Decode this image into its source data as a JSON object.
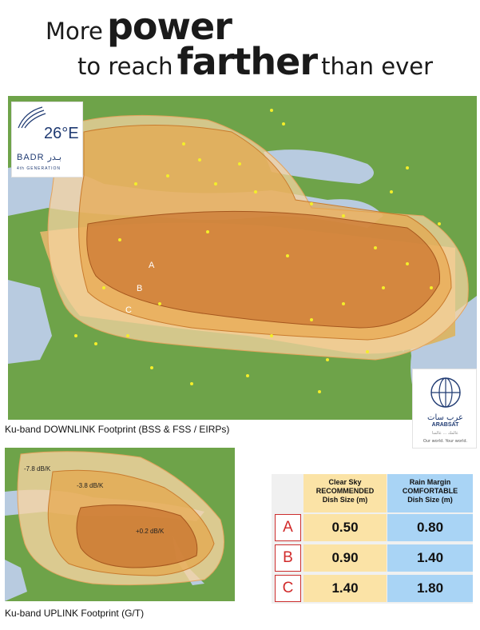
{
  "headline": {
    "line1_a": "More",
    "line1_b": "power",
    "line2_a": "to reach",
    "line2_b": "farther",
    "line2_c": "than ever"
  },
  "badr_logo": {
    "position": "26°E",
    "name": "BADR بـدر",
    "generation": "4th GENERATION"
  },
  "downlink_map": {
    "zones": [
      "A",
      "B",
      "C"
    ],
    "caption": "Ku-band DOWNLINK Footprint (BSS & FSS / EIRPs)"
  },
  "arabsat_logo": {
    "arabic": "عرب سات",
    "name": "ARABSAT",
    "subtitle": "عالمك ... عالمنا",
    "tagline": "Our world. Your world."
  },
  "uplink_map": {
    "contours": [
      "-7.8 dB/K",
      "-3.8 dB/K",
      "+0.2 dB/K"
    ],
    "caption": "Ku-band UPLINK Footprint (G/T)"
  },
  "dish_table": {
    "col1_header": [
      "Clear Sky",
      "RECOMMENDED",
      "Dish Size (m)"
    ],
    "col2_header": [
      "Rain Margin",
      "COMFORTABLE",
      "Dish Size (m)"
    ],
    "rows": [
      {
        "zone": "A",
        "clear_sky": "0.50",
        "rain_margin": "0.80"
      },
      {
        "zone": "B",
        "clear_sky": "0.90",
        "rain_margin": "1.40"
      },
      {
        "zone": "C",
        "clear_sky": "1.40",
        "rain_margin": "1.80"
      }
    ]
  },
  "colors": {
    "terrain_green": "#5f9a3b",
    "desert": "#d9b66a",
    "sea": "#b8cbe0",
    "beam_outer": "#f6d3a2",
    "beam_mid": "#e6a548",
    "beam_inner": "#c8702c",
    "accent_red": "#d12a2a",
    "table_yellow": "#fbe3a6",
    "table_blue": "#a9d4f5"
  }
}
